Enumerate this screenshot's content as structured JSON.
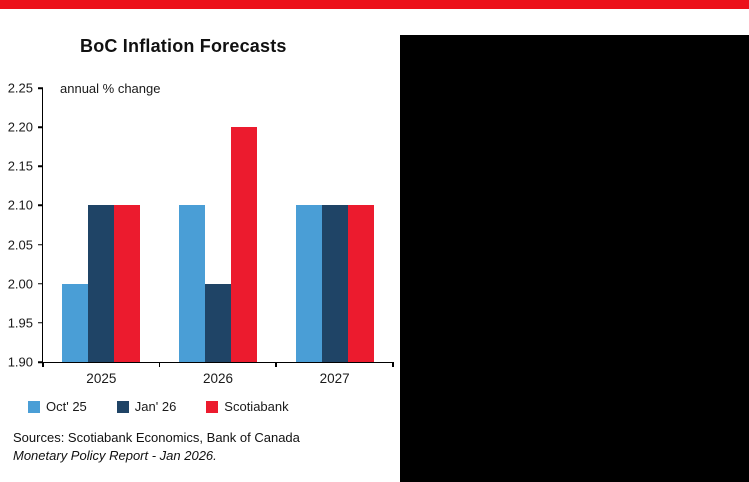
{
  "banner": {
    "color": "#EC111A"
  },
  "panel": {
    "color": "#000000"
  },
  "chart_data": {
    "type": "bar",
    "title": "BoC Inflation Forecasts",
    "subtitle": "annual % change",
    "categories": [
      "2025",
      "2026",
      "2027"
    ],
    "series": [
      {
        "name": "Oct' 25",
        "color": "#4A9ED6",
        "values": [
          2.0,
          2.1,
          2.1
        ]
      },
      {
        "name": "Jan' 26",
        "color": "#1F4466",
        "values": [
          2.1,
          2.0,
          2.1
        ]
      },
      {
        "name": "Scotiabank",
        "color": "#EC1B2E",
        "values": [
          2.1,
          2.2,
          2.1
        ]
      }
    ],
    "ylim": [
      1.9,
      2.25
    ],
    "ytick_step": 0.05,
    "grid": false,
    "legend_position": "bottom"
  },
  "footer": {
    "sources_line1": "Sources: Scotiabank Economics, Bank of Canada",
    "sources_line2": "Monetary Policy Report - Jan 2026."
  }
}
